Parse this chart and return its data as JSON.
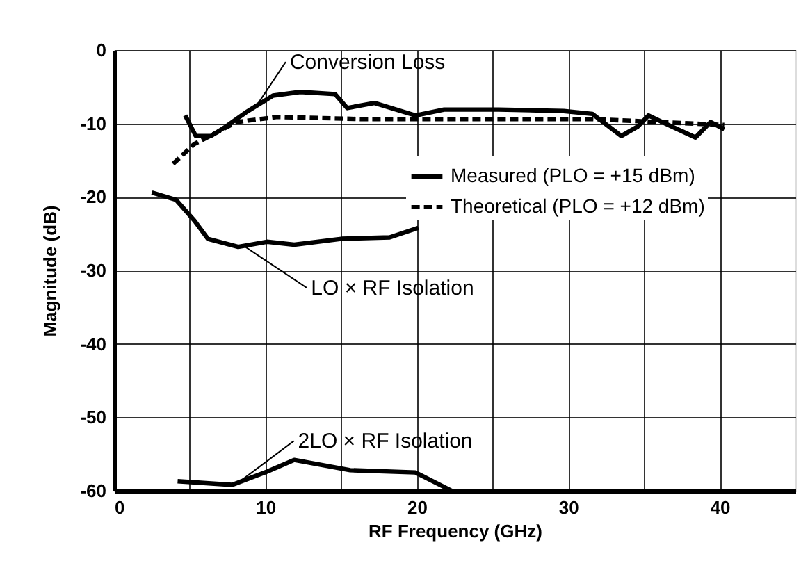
{
  "chart_data": {
    "type": "line",
    "xlabel": "RF Frequency (GHz)",
    "ylabel": "Magnitude (dB)",
    "xlim": [
      0,
      45
    ],
    "ylim": [
      -60,
      0
    ],
    "xticks": [
      0,
      {
        "value": 5,
        "label": null
      },
      10,
      {
        "value": 15,
        "label": null
      },
      20,
      {
        "value": 25,
        "label": null
      },
      30,
      {
        "value": 35,
        "label": null
      },
      40
    ],
    "yticks": [
      0,
      -10,
      -20,
      -30,
      -40,
      -50,
      -60
    ],
    "grid": true,
    "legend": "top right",
    "marker": "none",
    "series": [
      {
        "name": "Measured (PLO = +15 dBm)",
        "color": "#000000",
        "line_style": "solid",
        "x": [
          4.7,
          5.4,
          6.4,
          7.4,
          8.7,
          10.5,
          12.3,
          14.6,
          15.4,
          17.2,
          19.9,
          21.8,
          25.4,
          29.7,
          31.6,
          33.5,
          34.6,
          35.3,
          36.4,
          38.4,
          39.4,
          40.3
        ],
        "values": [
          -8.9,
          -11.7,
          -11.7,
          -10.4,
          -8.5,
          -6.2,
          -5.7,
          -6,
          -7.9,
          -7.2,
          -8.9,
          -8.1,
          -8.1,
          -8.3,
          -8.7,
          -11.7,
          -10.4,
          -8.9,
          -10,
          -11.9,
          -9.8,
          -10.8
        ]
      },
      {
        "name": "Theoretical (PLO = +12 dBm)",
        "color": "#000000",
        "line_style": "dashed",
        "x": [
          3.9,
          5.3,
          8.1,
          10.8,
          16.3,
          25.4,
          31.6,
          40.3
        ],
        "values": [
          -15.5,
          -12.8,
          -9.8,
          -9.1,
          -9.4,
          -9.4,
          -9.4,
          -10.2
        ]
      },
      {
        "color": "#000000",
        "line_style": "solid",
        "x": [
          2.5,
          4.1,
          5.3,
          6.2,
          8.2,
          10.1,
          11.9,
          15,
          18.2,
          20.1
        ],
        "values": [
          -19.4,
          -20.4,
          -23.2,
          -25.7,
          -26.8,
          -26.1,
          -26.5,
          -25.7,
          -25.5,
          -24.2
        ]
      },
      {
        "color": "#000000",
        "line_style": "solid",
        "x": [
          4.2,
          7.8,
          10.1,
          11.9,
          15.6,
          19.9,
          22.3
        ],
        "values": [
          -58.7,
          -59.2,
          -57.4,
          -55.8,
          -57.2,
          -57.5,
          -60
        ]
      }
    ],
    "annotations": [
      {
        "text": "Conversion Loss",
        "x": 9.5,
        "y": -7.3
      },
      {
        "text": "LO × RF Isolation",
        "x": 8.6,
        "y": -26.7
      },
      {
        "text": "2LO × RF Isolation",
        "x": 8.2,
        "y": -58.9
      }
    ]
  }
}
